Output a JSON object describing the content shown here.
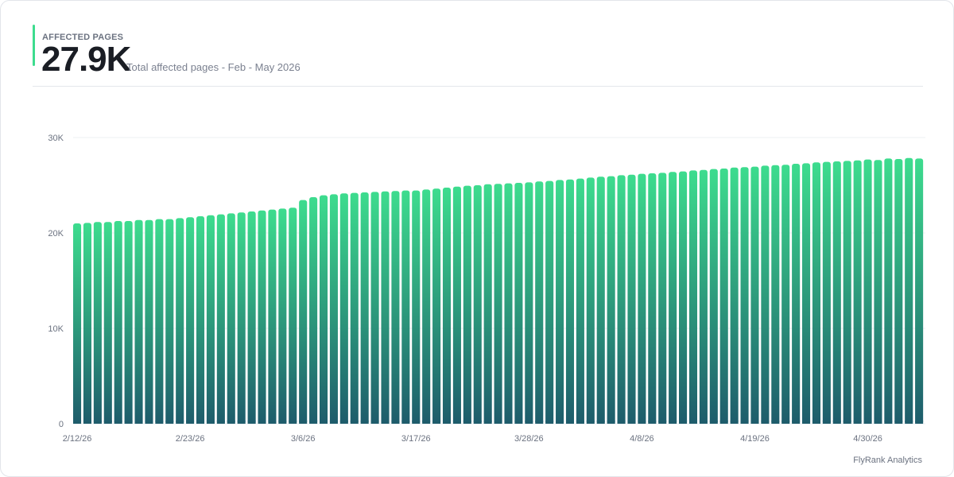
{
  "header": {
    "label": "AFFECTED PAGES",
    "value": "27.9K",
    "subtitle": "Total affected pages - Feb - May 2026"
  },
  "footer": {
    "brand": "FlyRank Analytics"
  },
  "colors": {
    "accent": "#3ddc8e",
    "bar_top": "#3ddc8e",
    "bar_bottom": "#1e5c6b",
    "grid": "#eef0f3",
    "tick_text": "#6b7280"
  },
  "chart_data": {
    "type": "bar",
    "title": "",
    "xlabel": "",
    "ylabel": "",
    "ylim": [
      0,
      30000
    ],
    "y_ticks": [
      {
        "value": 0,
        "label": "0"
      },
      {
        "value": 10000,
        "label": "10K"
      },
      {
        "value": 20000,
        "label": "20K"
      },
      {
        "value": 30000,
        "label": "30K"
      }
    ],
    "x_tick_labels": [
      "2/12/26",
      "2/23/26",
      "3/6/26",
      "3/17/26",
      "3/28/26",
      "4/8/26",
      "4/19/26",
      "4/30/26"
    ],
    "categories": [
      "2/12/26",
      "2/13/26",
      "2/14/26",
      "2/15/26",
      "2/16/26",
      "2/17/26",
      "2/18/26",
      "2/19/26",
      "2/20/26",
      "2/21/26",
      "2/22/26",
      "2/23/26",
      "2/24/26",
      "2/25/26",
      "2/26/26",
      "2/27/26",
      "2/28/26",
      "3/1/26",
      "3/2/26",
      "3/3/26",
      "3/4/26",
      "3/5/26",
      "3/6/26",
      "3/7/26",
      "3/8/26",
      "3/9/26",
      "3/10/26",
      "3/11/26",
      "3/12/26",
      "3/13/26",
      "3/14/26",
      "3/15/26",
      "3/16/26",
      "3/17/26",
      "3/18/26",
      "3/19/26",
      "3/20/26",
      "3/21/26",
      "3/22/26",
      "3/23/26",
      "3/24/26",
      "3/25/26",
      "3/26/26",
      "3/27/26",
      "3/28/26",
      "3/29/26",
      "3/30/26",
      "3/31/26",
      "4/1/26",
      "4/2/26",
      "4/3/26",
      "4/4/26",
      "4/5/26",
      "4/6/26",
      "4/7/26",
      "4/8/26",
      "4/9/26",
      "4/10/26",
      "4/11/26",
      "4/12/26",
      "4/13/26",
      "4/14/26",
      "4/15/26",
      "4/16/26",
      "4/17/26",
      "4/18/26",
      "4/19/26",
      "4/20/26",
      "4/21/26",
      "4/22/26",
      "4/23/26",
      "4/24/26",
      "4/25/26",
      "4/26/26",
      "4/27/26",
      "4/28/26",
      "4/29/26",
      "4/30/26",
      "5/1/26",
      "5/2/26",
      "5/3/26",
      "5/4/26",
      "5/5/26"
    ],
    "values": [
      21000,
      21050,
      21150,
      21150,
      21250,
      21250,
      21350,
      21350,
      21450,
      21450,
      21550,
      21650,
      21750,
      21850,
      21950,
      22050,
      22150,
      22250,
      22350,
      22450,
      22550,
      22650,
      23450,
      23750,
      23950,
      24050,
      24150,
      24200,
      24250,
      24300,
      24350,
      24400,
      24450,
      24450,
      24550,
      24650,
      24750,
      24850,
      24950,
      25000,
      25100,
      25150,
      25200,
      25250,
      25300,
      25400,
      25450,
      25550,
      25600,
      25700,
      25800,
      25900,
      25950,
      26050,
      26100,
      26200,
      26250,
      26300,
      26400,
      26450,
      26550,
      26600,
      26700,
      26750,
      26850,
      26900,
      26950,
      27050,
      27100,
      27150,
      27250,
      27300,
      27400,
      27450,
      27500,
      27550,
      27600,
      27700,
      27650,
      27800,
      27750,
      27850,
      27800
    ]
  }
}
